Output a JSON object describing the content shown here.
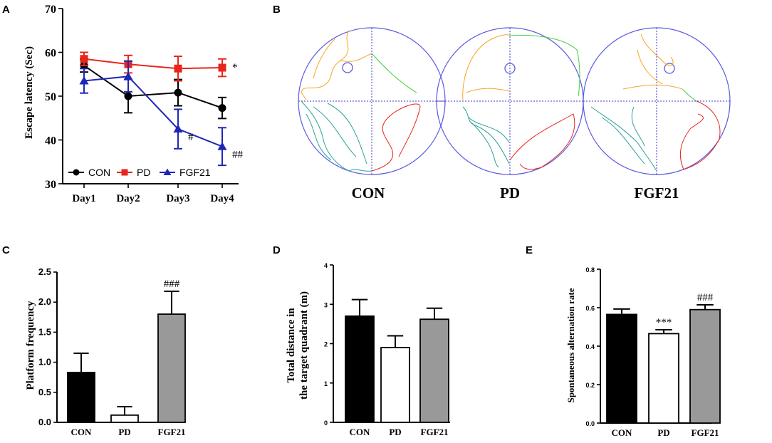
{
  "panels": {
    "A": "A",
    "B": "B",
    "C": "C",
    "D": "D",
    "E": "E"
  },
  "chart_data": [
    {
      "id": "A",
      "type": "line",
      "xlabel": "",
      "ylabel": "Escape latency (Sec)",
      "categories": [
        "Day1",
        "Day2",
        "Day3",
        "Day4"
      ],
      "ylim": [
        30,
        70
      ],
      "yticks": [
        30,
        40,
        50,
        60,
        70
      ],
      "legend_position": "bottom-left",
      "series": [
        {
          "name": "CON",
          "color": "#000000",
          "marker": "circle",
          "values": [
            57,
            50,
            50.8,
            47.3
          ],
          "errors": [
            1.5,
            3.8,
            3.0,
            2.4
          ]
        },
        {
          "name": "PD",
          "color": "#e8261d",
          "marker": "square",
          "values": [
            58.5,
            57.3,
            56.3,
            56.5
          ],
          "errors": [
            1.5,
            2.0,
            2.8,
            2.0
          ]
        },
        {
          "name": "FGF21",
          "color": "#1f27b8",
          "marker": "triangle",
          "values": [
            53.5,
            54.5,
            42.5,
            38.5
          ],
          "errors": [
            2.8,
            3.5,
            4.5,
            4.3
          ]
        }
      ],
      "annotations": [
        {
          "series": "PD",
          "index": 3,
          "text": "*"
        },
        {
          "series": "FGF21",
          "index": 2,
          "text": "#"
        },
        {
          "series": "FGF21",
          "index": 3,
          "text": "##"
        }
      ]
    },
    {
      "id": "C",
      "type": "bar",
      "ylabel": "Platform frequency",
      "categories": [
        "CON",
        "PD",
        "FGF21"
      ],
      "values": [
        0.83,
        0.12,
        1.8
      ],
      "errors": [
        0.32,
        0.14,
        0.38
      ],
      "fills": [
        "#000000",
        "#ffffff",
        "#999999"
      ],
      "ylim": [
        0,
        2.5
      ],
      "yticks": [
        "0.0",
        "0.5",
        "1.0",
        "1.5",
        "2.0",
        "2.5"
      ],
      "annotations": [
        "",
        "",
        "###"
      ]
    },
    {
      "id": "D",
      "type": "bar",
      "ylabel_lines": [
        "Total distance in",
        "the target quadrant (m)"
      ],
      "categories": [
        "CON",
        "PD",
        "FGF21"
      ],
      "values": [
        2.7,
        1.9,
        2.62
      ],
      "errors": [
        0.42,
        0.3,
        0.28
      ],
      "fills": [
        "#000000",
        "#ffffff",
        "#999999"
      ],
      "ylim": [
        0,
        4
      ],
      "yticks": [
        "0",
        "1",
        "2",
        "3",
        "4"
      ],
      "annotations": [
        "",
        "",
        ""
      ]
    },
    {
      "id": "E",
      "type": "bar",
      "ylabel": "Spontaneous alternation rate",
      "categories": [
        "CON",
        "PD",
        "FGF21"
      ],
      "values": [
        0.565,
        0.465,
        0.59
      ],
      "errors": [
        0.028,
        0.02,
        0.025
      ],
      "fills": [
        "#000000",
        "#ffffff",
        "#999999"
      ],
      "ylim": [
        0,
        0.8
      ],
      "yticks": [
        "0.0",
        "0.2",
        "0.4",
        "0.6",
        "0.8"
      ],
      "annotations": [
        "",
        "***",
        "###"
      ]
    }
  ],
  "maze": {
    "labels": [
      "CON",
      "PD",
      "FGF21"
    ],
    "pool_color": "#5a5ae0",
    "path_colors": {
      "q1": "#f5a623",
      "q2": "#3cd23c",
      "q3": "#2aa198",
      "q4": "#e8261d"
    }
  }
}
